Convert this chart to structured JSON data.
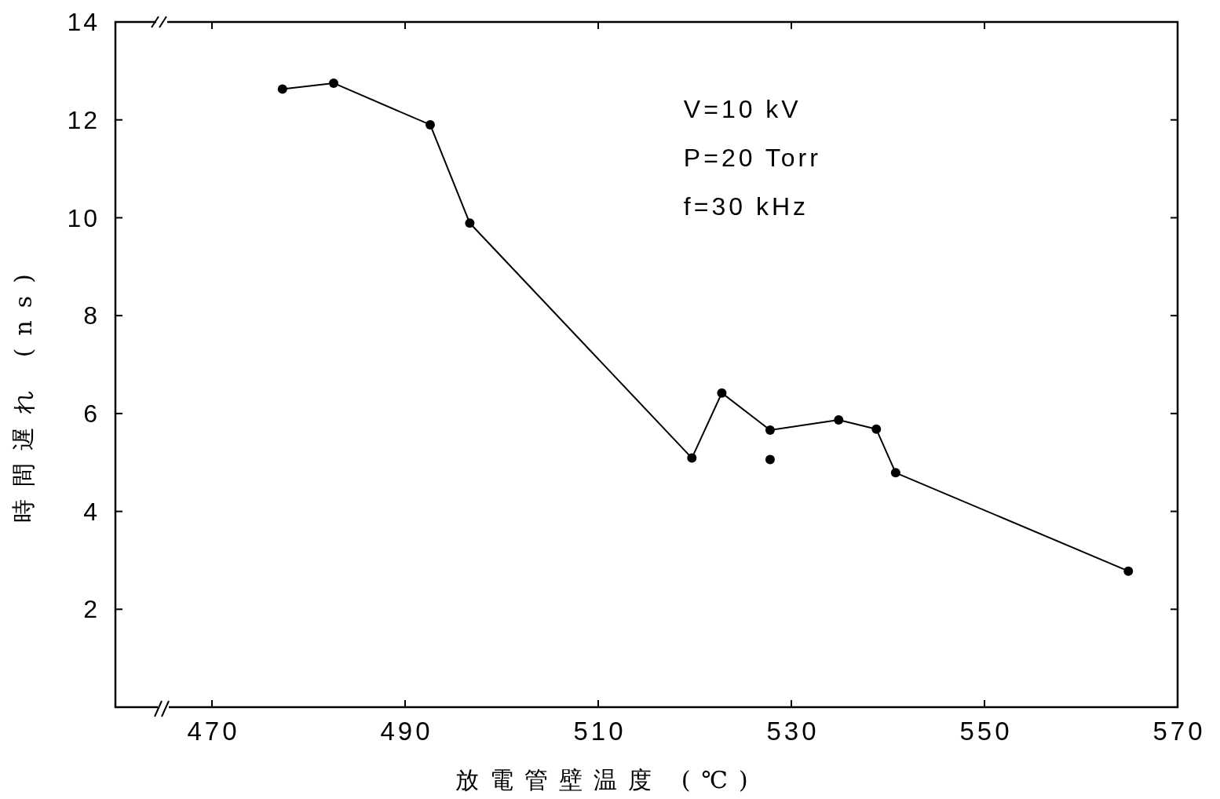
{
  "chart_data": {
    "type": "line",
    "xlabel": "放電管壁温度 (℃)",
    "ylabel": "時間遅れ (ns)",
    "annotations": [
      "V=10 kV",
      "P=20 Torr",
      "f=30 kHz"
    ],
    "xlim": [
      460,
      570
    ],
    "xticks": [
      470,
      490,
      510,
      530,
      550,
      570
    ],
    "ylim": [
      0,
      14
    ],
    "yticks": [
      2,
      4,
      6,
      8,
      10,
      12,
      14
    ],
    "marker": "circle",
    "series": [
      {
        "color": "#000000",
        "x": [
          477.3,
          482.6,
          492.6,
          496.7,
          519.7,
          522.8,
          527.8,
          534.9,
          538.8,
          540.8,
          564.9
        ],
        "values": [
          12.63,
          12.75,
          11.9,
          9.89,
          5.09,
          6.42,
          5.66,
          5.87,
          5.68,
          4.79,
          2.78
        ]
      },
      {
        "type": "scatter",
        "color": "#000000",
        "x": [
          527.8
        ],
        "values": [
          5.06
        ]
      }
    ]
  }
}
